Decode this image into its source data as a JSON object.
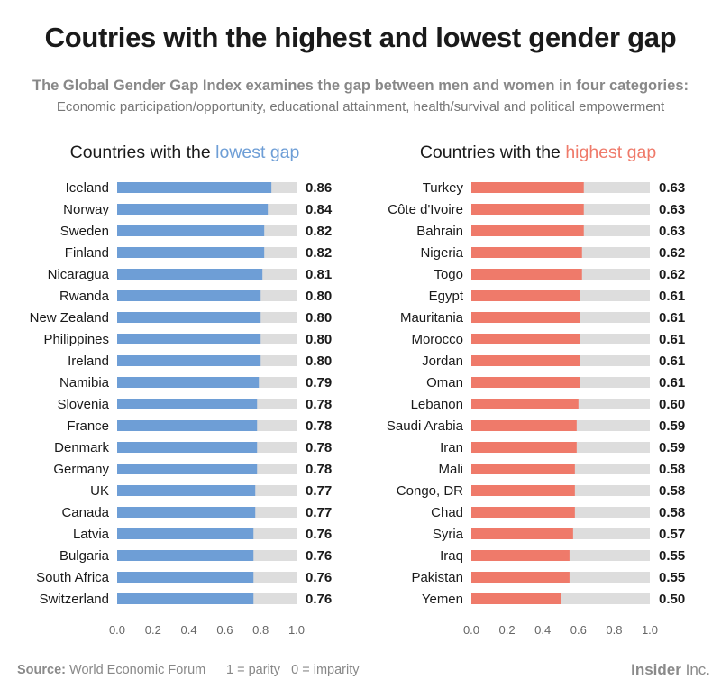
{
  "title": "Coutries with the highest and lowest gender gap",
  "subtitle": "The Global Gender Gap Index examines the gap between men and women in four categories:",
  "subtitle2": "Economic participation/opportunity, educational attainment, health/survival and political empowerment",
  "left_title_prefix": "Countries with the ",
  "left_title_highlight": "lowest gap",
  "right_title_prefix": "Countries with the ",
  "right_title_highlight": "highest gap",
  "footer": {
    "source_label": "Source:",
    "source_text": " World Economic Forum",
    "note": "1 = parity   0 = imparity",
    "brand_bold": "Insider",
    "brand_rest": " Inc."
  },
  "colors": {
    "low": "#6e9ed6",
    "high": "#ef7a6a",
    "track": "#dddddd"
  },
  "chart_data": [
    {
      "type": "bar",
      "orientation": "horizontal",
      "title": "Countries with the lowest gap",
      "categories": [
        "Iceland",
        "Norway",
        "Sweden",
        "Finland",
        "Nicaragua",
        "Rwanda",
        "New Zealand",
        "Philippines",
        "Ireland",
        "Namibia",
        "Slovenia",
        "France",
        "Denmark",
        "Germany",
        "UK",
        "Canada",
        "Latvia",
        "Bulgaria",
        "South Africa",
        "Switzerland"
      ],
      "values": [
        0.86,
        0.84,
        0.82,
        0.82,
        0.81,
        0.8,
        0.8,
        0.8,
        0.8,
        0.79,
        0.78,
        0.78,
        0.78,
        0.78,
        0.77,
        0.77,
        0.76,
        0.76,
        0.76,
        0.76
      ],
      "value_labels": [
        "0.86",
        "0.84",
        "0.82",
        "0.82",
        "0.81",
        "0.80",
        "0.80",
        "0.80",
        "0.80",
        "0.79",
        "0.78",
        "0.78",
        "0.78",
        "0.78",
        "0.77",
        "0.77",
        "0.76",
        "0.76",
        "0.76",
        "0.76"
      ],
      "xlim": [
        0,
        1.0
      ],
      "xticks": [
        "0.0",
        "0.2",
        "0.4",
        "0.6",
        "0.8",
        "1.0"
      ],
      "color": "#6e9ed6"
    },
    {
      "type": "bar",
      "orientation": "horizontal",
      "title": "Countries with the highest gap",
      "categories": [
        "Turkey",
        "Côte d'Ivoire",
        "Bahrain",
        "Nigeria",
        "Togo",
        "Egypt",
        "Mauritania",
        "Morocco",
        "Jordan",
        "Oman",
        "Lebanon",
        "Saudi Arabia",
        "Iran",
        "Mali",
        "Congo, DR",
        "Chad",
        "Syria",
        "Iraq",
        "Pakistan",
        "Yemen"
      ],
      "values": [
        0.63,
        0.63,
        0.63,
        0.62,
        0.62,
        0.61,
        0.61,
        0.61,
        0.61,
        0.61,
        0.6,
        0.59,
        0.59,
        0.58,
        0.58,
        0.58,
        0.57,
        0.55,
        0.55,
        0.5
      ],
      "value_labels": [
        "0.63",
        "0.63",
        "0.63",
        "0.62",
        "0.62",
        "0.61",
        "0.61",
        "0.61",
        "0.61",
        "0.61",
        "0.60",
        "0.59",
        "0.59",
        "0.58",
        "0.58",
        "0.58",
        "0.57",
        "0.55",
        "0.55",
        "0.50"
      ],
      "xlim": [
        0,
        1.0
      ],
      "xticks": [
        "0.0",
        "0.2",
        "0.4",
        "0.6",
        "0.8",
        "1.0"
      ],
      "color": "#ef7a6a"
    }
  ]
}
